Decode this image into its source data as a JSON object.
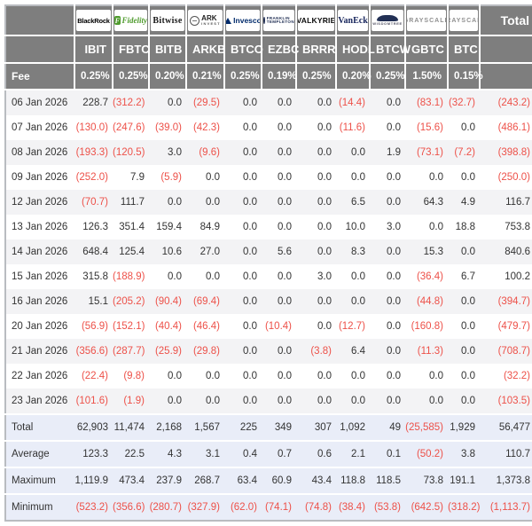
{
  "colors": {
    "header_bg": "#7e7e7e",
    "negative": "#ed5149",
    "row_alt": "#f3f3f5",
    "summary_bg": "#e9edf8"
  },
  "chart_data": {
    "type": "table",
    "total_label": "Total",
    "fee_label": "Fee",
    "providers": [
      {
        "id": "blackrock",
        "name": "BlackRock",
        "label": "BlackRock"
      },
      {
        "id": "fidelity",
        "name": "Fidelity",
        "label": "Fidelity",
        "icon": "fidelity-f-icon",
        "icon_glyph": "F"
      },
      {
        "id": "bitwise",
        "name": "Bitwise",
        "label": "Bitwise"
      },
      {
        "id": "ark",
        "name": "ARK Invest",
        "label": "ARK",
        "sublabel": "INVEST",
        "icon": "ark-globe-icon"
      },
      {
        "id": "invesco",
        "name": "Invesco",
        "label": "Invesco",
        "icon": "invesco-triangle-icon"
      },
      {
        "id": "franklin",
        "name": "Franklin Templeton",
        "label": "FRANKLIN",
        "sublabel": "TEMPLETON",
        "icon": "franklin-circle-icon"
      },
      {
        "id": "valkyrie",
        "name": "Valkyrie",
        "label": "VALKYRIE"
      },
      {
        "id": "vaneck",
        "name": "VanEck",
        "label": "VanEck"
      },
      {
        "id": "wisdomtree",
        "name": "WisdomTree",
        "label": "WISDOMTREE",
        "icon": "wisdomtree-tree-icon"
      },
      {
        "id": "grayscale",
        "name": "Grayscale",
        "label": "GRAYSCALE"
      },
      {
        "id": "grayscale-btc",
        "name": "Grayscale",
        "label": "GRAYSCALE"
      }
    ],
    "tickers": [
      "IBIT",
      "FBTC",
      "BITB",
      "ARKB",
      "BTCO",
      "EZBC",
      "BRRR",
      "HODL",
      "BTCW",
      "GBTC",
      "BTC"
    ],
    "fees": [
      "0.25%",
      "0.25%",
      "0.20%",
      "0.21%",
      "0.25%",
      "0.19%",
      "0.25%",
      "0.20%",
      "0.25%",
      "1.50%",
      "0.15%"
    ],
    "rows": [
      {
        "date": "06 Jan 2026",
        "values": [
          "228.7",
          "(312.2)",
          "0.0",
          "(29.5)",
          "0.0",
          "0.0",
          "0.0",
          "(14.4)",
          "0.0",
          "(83.1)",
          "(32.7)"
        ],
        "total": "(243.2)"
      },
      {
        "date": "07 Jan 2026",
        "values": [
          "(130.0)",
          "(247.6)",
          "(39.0)",
          "(42.3)",
          "0.0",
          "0.0",
          "0.0",
          "(11.6)",
          "0.0",
          "(15.6)",
          "0.0"
        ],
        "total": "(486.1)"
      },
      {
        "date": "08 Jan 2026",
        "values": [
          "(193.3)",
          "(120.5)",
          "3.0",
          "(9.6)",
          "0.0",
          "0.0",
          "0.0",
          "0.0",
          "1.9",
          "(73.1)",
          "(7.2)"
        ],
        "total": "(398.8)"
      },
      {
        "date": "09 Jan 2026",
        "values": [
          "(252.0)",
          "7.9",
          "(5.9)",
          "0.0",
          "0.0",
          "0.0",
          "0.0",
          "0.0",
          "0.0",
          "0.0",
          "0.0"
        ],
        "total": "(250.0)"
      },
      {
        "date": "12 Jan 2026",
        "values": [
          "(70.7)",
          "111.7",
          "0.0",
          "0.0",
          "0.0",
          "0.0",
          "0.0",
          "6.5",
          "0.0",
          "64.3",
          "4.9"
        ],
        "total": "116.7"
      },
      {
        "date": "13 Jan 2026",
        "values": [
          "126.3",
          "351.4",
          "159.4",
          "84.9",
          "0.0",
          "0.0",
          "0.0",
          "10.0",
          "3.0",
          "0.0",
          "18.8"
        ],
        "total": "753.8"
      },
      {
        "date": "14 Jan 2026",
        "values": [
          "648.4",
          "125.4",
          "10.6",
          "27.0",
          "0.0",
          "5.6",
          "0.0",
          "8.3",
          "0.0",
          "15.3",
          "0.0"
        ],
        "total": "840.6"
      },
      {
        "date": "15 Jan 2026",
        "values": [
          "315.8",
          "(188.9)",
          "0.0",
          "0.0",
          "0.0",
          "0.0",
          "3.0",
          "0.0",
          "0.0",
          "(36.4)",
          "6.7"
        ],
        "total": "100.2"
      },
      {
        "date": "16 Jan 2026",
        "values": [
          "15.1",
          "(205.2)",
          "(90.4)",
          "(69.4)",
          "0.0",
          "0.0",
          "0.0",
          "0.0",
          "0.0",
          "(44.8)",
          "0.0"
        ],
        "total": "(394.7)"
      },
      {
        "date": "20 Jan 2026",
        "values": [
          "(56.9)",
          "(152.1)",
          "(40.4)",
          "(46.4)",
          "0.0",
          "(10.4)",
          "0.0",
          "(12.7)",
          "0.0",
          "(160.8)",
          "0.0"
        ],
        "total": "(479.7)"
      },
      {
        "date": "21 Jan 2026",
        "values": [
          "(356.6)",
          "(287.7)",
          "(25.9)",
          "(29.8)",
          "0.0",
          "0.0",
          "(3.8)",
          "6.4",
          "0.0",
          "(11.3)",
          "0.0"
        ],
        "total": "(708.7)"
      },
      {
        "date": "22 Jan 2026",
        "values": [
          "(22.4)",
          "(9.8)",
          "0.0",
          "0.0",
          "0.0",
          "0.0",
          "0.0",
          "0.0",
          "0.0",
          "0.0",
          "0.0"
        ],
        "total": "(32.2)"
      },
      {
        "date": "23 Jan 2026",
        "values": [
          "(101.6)",
          "(1.9)",
          "0.0",
          "0.0",
          "0.0",
          "0.0",
          "0.0",
          "0.0",
          "0.0",
          "0.0",
          "0.0"
        ],
        "total": "(103.5)"
      }
    ],
    "summary": [
      {
        "label": "Total",
        "values": [
          "62,903",
          "11,474",
          "2,168",
          "1,567",
          "225",
          "349",
          "307",
          "1,092",
          "49",
          "(25,585)",
          "1,929"
        ],
        "total": "56,477"
      },
      {
        "label": "Average",
        "values": [
          "123.3",
          "22.5",
          "4.3",
          "3.1",
          "0.4",
          "0.7",
          "0.6",
          "2.1",
          "0.1",
          "(50.2)",
          "3.8"
        ],
        "total": "110.7"
      },
      {
        "label": "Maximum",
        "values": [
          "1,119.9",
          "473.4",
          "237.9",
          "268.7",
          "63.4",
          "60.9",
          "43.4",
          "118.8",
          "118.5",
          "73.8",
          "191.1"
        ],
        "total": "1,373.8"
      },
      {
        "label": "Minimum",
        "values": [
          "(523.2)",
          "(356.6)",
          "(280.7)",
          "(327.9)",
          "(62.0)",
          "(74.1)",
          "(74.8)",
          "(38.4)",
          "(53.8)",
          "(642.5)",
          "(318.2)"
        ],
        "total": "(1,113.7)"
      }
    ]
  }
}
